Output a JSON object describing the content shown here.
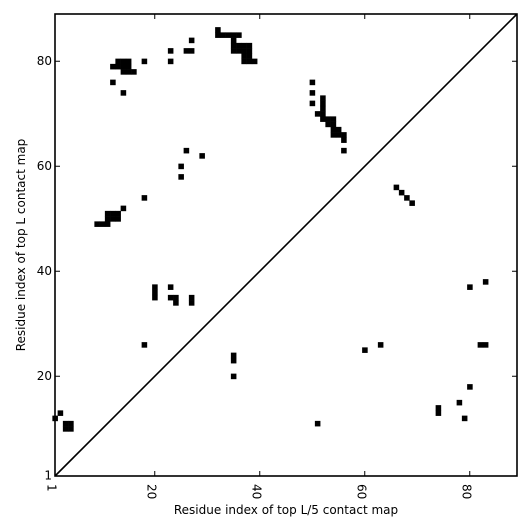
{
  "chart_data": {
    "type": "heatmap",
    "xlabel": "Residue index of top L/5 contact map",
    "ylabel": "Residue index of top L contact map",
    "xlim": [
      1,
      89
    ],
    "ylim": [
      1,
      89
    ],
    "xticks": [
      1,
      20,
      40,
      60,
      80
    ],
    "yticks": [
      1,
      20,
      40,
      60,
      80
    ],
    "grid": false,
    "diagonal": true,
    "cell_color": "#000000",
    "background_color": "#ffffff",
    "upper_left_contacts": [
      [
        1,
        12
      ],
      [
        2,
        13
      ],
      [
        3,
        11
      ],
      [
        3,
        10
      ],
      [
        4,
        11
      ],
      [
        4,
        10
      ],
      [
        9,
        49
      ],
      [
        10,
        49
      ],
      [
        11,
        49
      ],
      [
        11,
        50
      ],
      [
        11,
        51
      ],
      [
        12,
        50
      ],
      [
        12,
        51
      ],
      [
        13,
        50
      ],
      [
        13,
        51
      ],
      [
        14,
        52
      ],
      [
        12,
        79
      ],
      [
        13,
        79
      ],
      [
        13,
        80
      ],
      [
        14,
        79
      ],
      [
        14,
        80
      ],
      [
        14,
        78
      ],
      [
        15,
        78
      ],
      [
        15,
        79
      ],
      [
        15,
        80
      ],
      [
        16,
        78
      ],
      [
        12,
        76
      ],
      [
        14,
        74
      ],
      [
        18,
        80
      ],
      [
        18,
        54
      ],
      [
        18,
        26
      ],
      [
        20,
        37
      ],
      [
        20,
        36
      ],
      [
        20,
        35
      ],
      [
        23,
        82
      ],
      [
        23,
        80
      ],
      [
        23,
        37
      ],
      [
        23,
        35
      ],
      [
        24,
        35
      ],
      [
        24,
        34
      ],
      [
        25,
        60
      ],
      [
        25,
        58
      ],
      [
        26,
        63
      ],
      [
        26,
        82
      ],
      [
        27,
        82
      ],
      [
        27,
        84
      ],
      [
        27,
        35
      ],
      [
        27,
        34
      ],
      [
        29,
        62
      ],
      [
        32,
        86
      ],
      [
        32,
        85
      ],
      [
        33,
        85
      ],
      [
        34,
        85
      ],
      [
        35,
        85
      ],
      [
        36,
        85
      ],
      [
        35,
        84
      ],
      [
        35,
        83
      ],
      [
        35,
        82
      ],
      [
        36,
        83
      ],
      [
        36,
        82
      ],
      [
        37,
        83
      ],
      [
        37,
        82
      ],
      [
        37,
        81
      ],
      [
        37,
        80
      ],
      [
        38,
        83
      ],
      [
        38,
        82
      ],
      [
        38,
        81
      ],
      [
        38,
        80
      ],
      [
        39,
        80
      ],
      [
        35,
        24
      ],
      [
        35,
        23
      ],
      [
        35,
        20
      ],
      [
        50,
        76
      ],
      [
        50,
        74
      ],
      [
        50,
        72
      ],
      [
        51,
        70
      ],
      [
        52,
        73
      ],
      [
        52,
        72
      ],
      [
        52,
        71
      ],
      [
        52,
        70
      ],
      [
        52,
        69
      ],
      [
        53,
        69
      ],
      [
        53,
        68
      ],
      [
        54,
        69
      ],
      [
        54,
        68
      ],
      [
        54,
        67
      ],
      [
        54,
        66
      ],
      [
        55,
        67
      ],
      [
        55,
        66
      ],
      [
        56,
        66
      ],
      [
        56,
        65
      ],
      [
        56,
        63
      ]
    ],
    "lower_right_contacts": [
      [
        66,
        56
      ],
      [
        67,
        55
      ],
      [
        68,
        54
      ],
      [
        69,
        53
      ],
      [
        80,
        37
      ],
      [
        83,
        38
      ],
      [
        60,
        25
      ],
      [
        63,
        26
      ],
      [
        82,
        26
      ],
      [
        83,
        26
      ],
      [
        80,
        18
      ],
      [
        78,
        15
      ],
      [
        74,
        14
      ],
      [
        74,
        13
      ],
      [
        79,
        12
      ],
      [
        51,
        11
      ]
    ]
  }
}
